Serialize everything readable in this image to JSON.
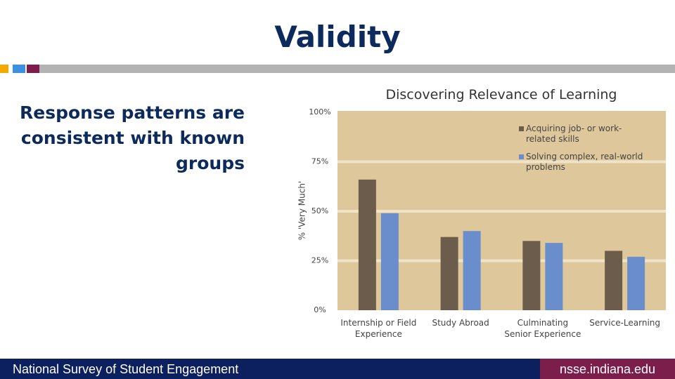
{
  "slide": {
    "title": "Validity",
    "body": "Response patterns are consistent with known groups",
    "footer_left": "National Survey of Student Engagement",
    "footer_right": "nsse.indiana.edu"
  },
  "chart_data": {
    "type": "bar",
    "title": "Discovering Relevance of Learning",
    "y_label": "% 'Very Much'",
    "categories": [
      "Internship or Field Experience",
      "Study Abroad",
      "Culminating Senior Experience",
      "Service-Learning"
    ],
    "series": [
      {
        "name": "Acquiring job- or work-related skills",
        "color": "#6b5c4c",
        "values": [
          66,
          37,
          35,
          30
        ]
      },
      {
        "name": "Solving complex, real-world problems",
        "color": "#6a8dcb",
        "values": [
          49,
          40,
          34,
          27
        ]
      }
    ],
    "ylim": [
      0,
      100
    ],
    "yticks": [
      {
        "value": 0,
        "label": "0%"
      },
      {
        "value": 25,
        "label": "25%"
      },
      {
        "value": 50,
        "label": "50%"
      },
      {
        "value": 75,
        "label": "75%"
      },
      {
        "value": 100,
        "label": "100%"
      }
    ],
    "grid": true,
    "legend": "top-right"
  }
}
